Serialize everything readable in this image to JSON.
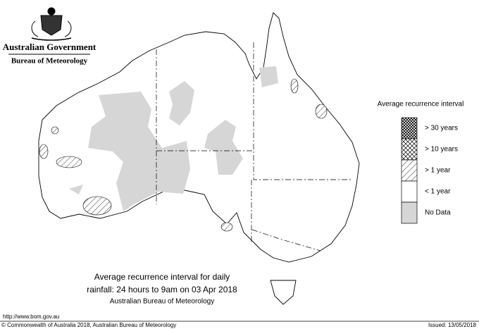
{
  "header": {
    "title": "Australian Government",
    "subtitle": "Bureau of Meteorology"
  },
  "legend": {
    "title": "Average recurrence interval",
    "items": [
      "> 30 years",
      "> 10 years",
      "> 1 year",
      "< 1 year",
      "No Data"
    ]
  },
  "caption": {
    "lines": [
      "Average recurrence interval for daily",
      "rainfall: 24 hours to 9am on 03 Apr 2018"
    ],
    "source": "Australian Bureau of Meteorology"
  },
  "footer": {
    "url": "http://www.bom.gov.au",
    "copyright": "© Commonwealth of Australia 2018, Australian Bureau of Meteorology",
    "issued": "Issued: 13/05/2018"
  }
}
